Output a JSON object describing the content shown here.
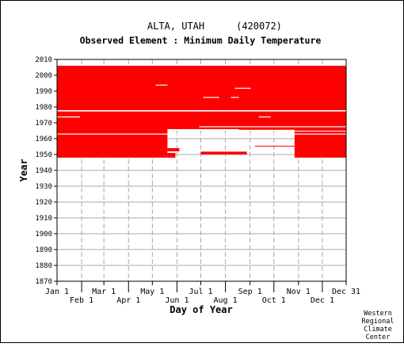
{
  "chart_data": {
    "type": "heatmap",
    "title": "ALTA, UTAH",
    "station_id": "(420072)",
    "subtitle": "Observed Element : Minimum Daily Temperature",
    "xlabel": "Day of Year",
    "ylabel": "Year",
    "xlim": [
      1,
      365
    ],
    "ylim": [
      1870,
      2010
    ],
    "y_ticks": [
      1870,
      1880,
      1890,
      1900,
      1910,
      1920,
      1930,
      1940,
      1950,
      1960,
      1970,
      1980,
      1990,
      2000,
      2010
    ],
    "x_ticks_top_row": [
      {
        "label": "Jan 1",
        "day": 1
      },
      {
        "label": "Mar 1",
        "day": 60
      },
      {
        "label": "May 1",
        "day": 121
      },
      {
        "label": "Jul 1",
        "day": 182
      },
      {
        "label": "Sep 1",
        "day": 244
      },
      {
        "label": "Nov 1",
        "day": 305
      },
      {
        "label": "Dec 31",
        "day": 365
      }
    ],
    "x_ticks_bottom_row": [
      {
        "label": "Feb 1",
        "day": 32
      },
      {
        "label": "Apr 1",
        "day": 91
      },
      {
        "label": "Jun 1",
        "day": 152
      },
      {
        "label": "Aug 1",
        "day": 213
      },
      {
        "label": "Oct 1",
        "day": 274
      },
      {
        "label": "Dec 1",
        "day": 335
      }
    ],
    "grid": true,
    "data_color": "#ff0000",
    "coverage_regions": [
      {
        "day_start": 1,
        "day_end": 365,
        "year_start": 1978,
        "year_end": 2006
      },
      {
        "day_start": 1,
        "day_end": 365,
        "year_start": 1966,
        "year_end": 1977.2
      },
      {
        "day_start": 1,
        "day_end": 140,
        "year_start": 1948,
        "year_end": 1966
      },
      {
        "day_start": 140,
        "day_end": 160,
        "year_start": 1968,
        "year_end": 1970
      },
      {
        "day_start": 160,
        "day_end": 300,
        "year_start": 1970,
        "year_end": 1971
      },
      {
        "day_start": 300,
        "day_end": 365,
        "year_start": 1948,
        "year_end": 1966
      },
      {
        "day_start": 230,
        "day_end": 300,
        "year_start": 1965.6,
        "year_end": 1966
      },
      {
        "day_start": 250,
        "day_end": 300,
        "year_start": 1955,
        "year_end": 1955.5
      },
      {
        "day_start": 182,
        "day_end": 240,
        "year_start": 1950,
        "year_end": 1951.8
      },
      {
        "day_start": 140,
        "day_end": 155,
        "year_start": 1952,
        "year_end": 1954
      },
      {
        "day_start": 140,
        "day_end": 150,
        "year_start": 1948,
        "year_end": 1951
      }
    ],
    "missing_gaps": [
      {
        "day_start": 1,
        "day_end": 365,
        "year_start": 1977.2,
        "year_end": 1978
      },
      {
        "day_start": 1,
        "day_end": 365,
        "year_start": 1962.6,
        "year_end": 1963.2
      },
      {
        "day_start": 125,
        "day_end": 140,
        "year_start": 1993.5,
        "year_end": 1994.1
      },
      {
        "day_start": 185,
        "day_end": 205,
        "year_start": 1985.7,
        "year_end": 1986.3
      },
      {
        "day_start": 220,
        "day_end": 230,
        "year_start": 1985.7,
        "year_end": 1986.3
      },
      {
        "day_start": 225,
        "day_end": 245,
        "year_start": 1991.5,
        "year_end": 1992.1
      },
      {
        "day_start": 1,
        "day_end": 30,
        "year_start": 1973.4,
        "year_end": 1974
      },
      {
        "day_start": 255,
        "day_end": 270,
        "year_start": 1973.4,
        "year_end": 1974
      },
      {
        "day_start": 180,
        "day_end": 365,
        "year_start": 1967.2,
        "year_end": 1967.8
      },
      {
        "day_start": 300,
        "day_end": 365,
        "year_start": 1964.5,
        "year_end": 1965
      }
    ]
  },
  "credit": {
    "line1": "Western",
    "line2": "Regional",
    "line3": "Climate",
    "line4": "Center"
  }
}
